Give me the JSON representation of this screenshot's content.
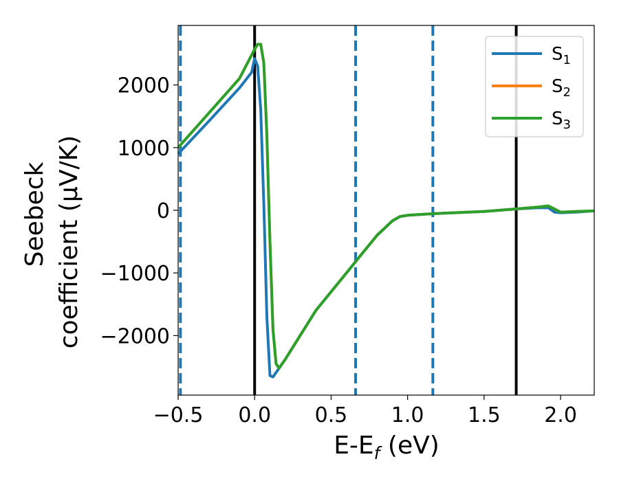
{
  "chart_data": {
    "type": "line",
    "title": "",
    "xlabel": "E-E$_f$ (eV)",
    "xlabel_main": "E-E",
    "xlabel_sub": "f",
    "xlabel_unit": " (eV)",
    "ylabel_line1": "Seebeck",
    "ylabel_line2": "coefficient  (μV/K)",
    "xlim": [
      -0.5,
      2.22
    ],
    "ylim": [
      -2950,
      2950
    ],
    "xticks": [
      -0.5,
      0.0,
      0.5,
      1.0,
      1.5,
      2.0
    ],
    "xtick_labels": [
      "−0.5",
      "0.0",
      "0.5",
      "1.0",
      "1.5",
      "2.0"
    ],
    "yticks": [
      2000,
      1000,
      0,
      -1000,
      -2000
    ],
    "ytick_labels": [
      "2000",
      "1000",
      "0",
      "−1000",
      "−2000"
    ],
    "grid": false,
    "legend_position": "top-right",
    "vlines_solid": [
      0.0,
      1.71
    ],
    "vlines_dashed": [
      -0.485,
      0.66,
      1.165
    ],
    "series": [
      {
        "name": "S",
        "subscript": "1",
        "color": "#1f77b4",
        "x": [
          -0.5,
          -0.3,
          -0.1,
          -0.02,
          0.0,
          0.02,
          0.04,
          0.06,
          0.08,
          0.1,
          0.12,
          0.2,
          0.4,
          0.6,
          0.7,
          0.8,
          0.9,
          0.95,
          1.0,
          1.2,
          1.5,
          1.7,
          1.85,
          1.92,
          1.96,
          2.0,
          2.1,
          2.22
        ],
        "y": [
          900,
          1420,
          1950,
          2200,
          2420,
          2300,
          1600,
          100,
          -1700,
          -2640,
          -2660,
          -2380,
          -1600,
          -1000,
          -700,
          -400,
          -170,
          -100,
          -80,
          -50,
          -20,
          20,
          40,
          40,
          -30,
          -40,
          -30,
          -10
        ]
      },
      {
        "name": "S",
        "subscript": "2",
        "color": "#ff7f0e",
        "x": [
          -0.5,
          -0.3,
          -0.1,
          0.0,
          0.02,
          0.04,
          0.06,
          0.08,
          0.1,
          0.12,
          0.14,
          0.16,
          0.2,
          0.4,
          0.6,
          0.7,
          0.8,
          0.9,
          0.95,
          1.0,
          1.2,
          1.5,
          1.7,
          1.85,
          1.92,
          1.96,
          2.0,
          2.1,
          2.22
        ],
        "y": [
          1000,
          1550,
          2100,
          2570,
          2650,
          2650,
          2350,
          1200,
          -500,
          -1900,
          -2450,
          -2520,
          -2380,
          -1600,
          -1000,
          -700,
          -400,
          -170,
          -100,
          -80,
          -50,
          -20,
          20,
          50,
          70,
          20,
          -30,
          -20,
          -10
        ]
      },
      {
        "name": "S",
        "subscript": "3",
        "color": "#2ca02c",
        "x": [
          -0.5,
          -0.3,
          -0.1,
          0.0,
          0.02,
          0.04,
          0.06,
          0.08,
          0.1,
          0.12,
          0.14,
          0.16,
          0.2,
          0.4,
          0.6,
          0.7,
          0.8,
          0.9,
          0.95,
          1.0,
          1.2,
          1.5,
          1.7,
          1.85,
          1.92,
          1.96,
          2.0,
          2.1,
          2.22
        ],
        "y": [
          1000,
          1550,
          2100,
          2570,
          2650,
          2650,
          2350,
          1200,
          -500,
          -1900,
          -2450,
          -2520,
          -2380,
          -1600,
          -1000,
          -700,
          -400,
          -170,
          -100,
          -80,
          -50,
          -20,
          20,
          50,
          70,
          20,
          -30,
          -20,
          -10
        ]
      }
    ]
  }
}
